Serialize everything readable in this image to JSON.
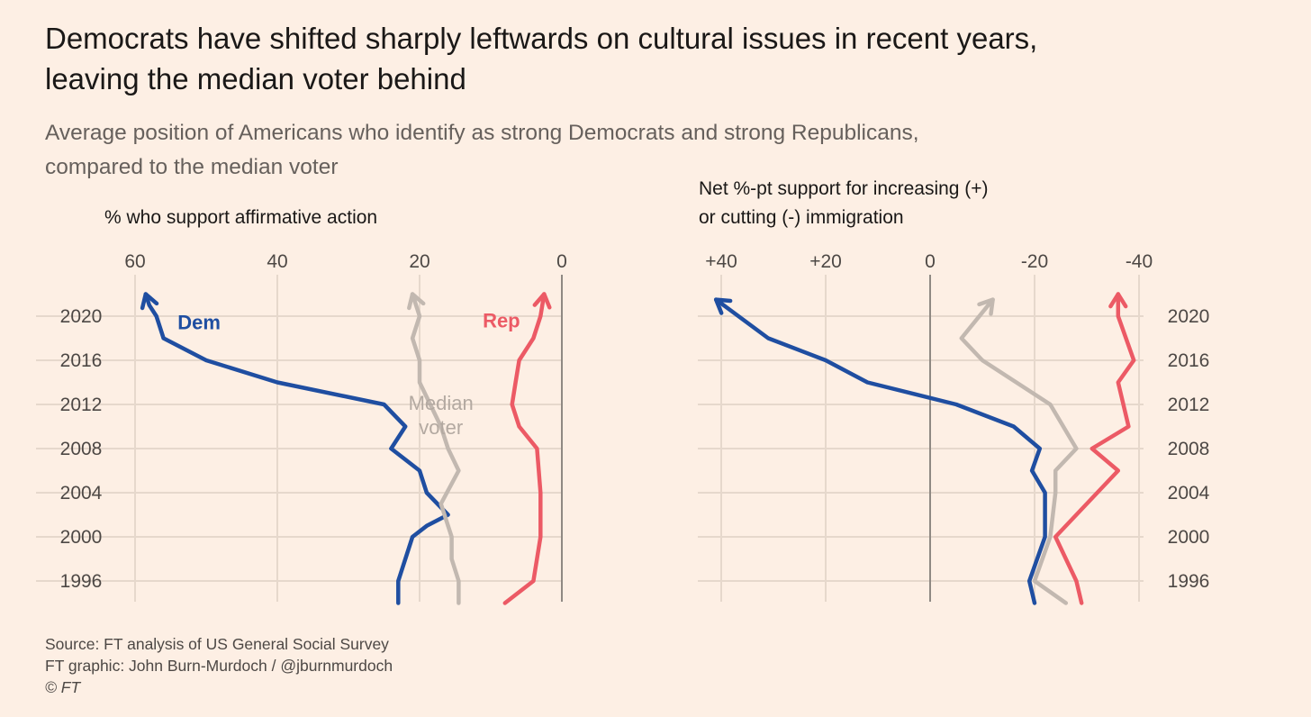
{
  "title_line1": "Democrats have shifted sharply leftwards on cultural issues in recent years,",
  "title_line2": "leaving the median voter behind",
  "subtitle_line1": "Average position of Americans who identify as strong Democrats and strong Republicans,",
  "subtitle_line2": "compared to the median voter",
  "source": {
    "line1": "Source: FT analysis of US General Social Survey",
    "line2": "FT graphic: John Burn-Murdoch / @jburnmurdoch",
    "line3": "© FT"
  },
  "colors": {
    "dem": "#1f4ea1",
    "rep": "#ec5a65",
    "median": "#c2b8b0",
    "grid": "#e6d8cc",
    "zero": "#8f8983"
  },
  "chart_data": [
    {
      "type": "line",
      "orientation": "vertical-time",
      "xlabel": "% who support affirmative action",
      "x_reversed": true,
      "xlim": [
        0,
        60
      ],
      "x_ticks": [
        {
          "value": 60,
          "label": "60"
        },
        {
          "value": 40,
          "label": "40"
        },
        {
          "value": 20,
          "label": "20"
        },
        {
          "value": 0,
          "label": "0"
        }
      ],
      "ylim": [
        1994,
        2022
      ],
      "y_ticks": [
        1996,
        2000,
        2004,
        2008,
        2012,
        2016,
        2020
      ],
      "tick_side": "left",
      "grid": true,
      "series": [
        {
          "name": "Dem",
          "color_key": "dem",
          "label_lines": [
            "Dem"
          ],
          "label_at": {
            "x": 51,
            "year": 2018.8
          },
          "points": [
            [
              23,
              1994
            ],
            [
              23,
              1996
            ],
            [
              22,
              1998
            ],
            [
              21,
              2000
            ],
            [
              19,
              2001
            ],
            [
              16,
              2002
            ],
            [
              19,
              2004
            ],
            [
              20,
              2006
            ],
            [
              24,
              2008
            ],
            [
              22,
              2010
            ],
            [
              25,
              2012
            ],
            [
              40,
              2014
            ],
            [
              50,
              2016
            ],
            [
              56,
              2018
            ],
            [
              57,
              2020
            ],
            [
              58,
              2021
            ],
            [
              58.5,
              2022
            ]
          ]
        },
        {
          "name": "Median voter",
          "color_key": "median",
          "label_lines": [
            "Median",
            "voter"
          ],
          "label_at": {
            "x": 17,
            "year": 2011.5
          },
          "points": [
            [
              14.5,
              1994
            ],
            [
              14.5,
              1996
            ],
            [
              15.5,
              1998
            ],
            [
              15.5,
              2000
            ],
            [
              17,
              2003
            ],
            [
              14.5,
              2006
            ],
            [
              16,
              2008
            ],
            [
              17,
              2010
            ],
            [
              20,
              2014
            ],
            [
              20,
              2016
            ],
            [
              21,
              2018
            ],
            [
              20,
              2020
            ],
            [
              21,
              2022
            ]
          ]
        },
        {
          "name": "Rep",
          "color_key": "rep",
          "label_lines": [
            "Rep"
          ],
          "label_at": {
            "x": 8.5,
            "year": 2019
          },
          "points": [
            [
              8,
              1994
            ],
            [
              4,
              1996
            ],
            [
              3,
              2000
            ],
            [
              3,
              2004
            ],
            [
              3.5,
              2008
            ],
            [
              6,
              2010
            ],
            [
              7,
              2012
            ],
            [
              6.5,
              2014
            ],
            [
              6,
              2016
            ],
            [
              4,
              2018
            ],
            [
              3,
              2020
            ],
            [
              2.5,
              2022
            ]
          ]
        }
      ]
    },
    {
      "type": "line",
      "orientation": "vertical-time",
      "xlabel_line1": "Net %-pt support for increasing (+)",
      "xlabel_line2": "or cutting (-) immigration",
      "x_reversed": true,
      "xlim": [
        -40,
        40
      ],
      "x_ticks": [
        {
          "value": 40,
          "label": "+40"
        },
        {
          "value": 20,
          "label": "+20"
        },
        {
          "value": 0,
          "label": "0"
        },
        {
          "value": -20,
          "label": "-20"
        },
        {
          "value": -40,
          "label": "-40"
        }
      ],
      "ylim": [
        1994,
        2022
      ],
      "y_ticks": [
        1996,
        2000,
        2004,
        2008,
        2012,
        2016,
        2020
      ],
      "tick_side": "right",
      "grid": true,
      "series": [
        {
          "name": "Dem",
          "color_key": "dem",
          "points": [
            [
              -20,
              1994
            ],
            [
              -19,
              1996
            ],
            [
              -22,
              2000
            ],
            [
              -22,
              2004
            ],
            [
              -19.5,
              2006
            ],
            [
              -21,
              2008
            ],
            [
              -16,
              2010
            ],
            [
              -5,
              2012
            ],
            [
              12,
              2014
            ],
            [
              20,
              2016
            ],
            [
              31,
              2018
            ],
            [
              41,
              2021.5
            ]
          ]
        },
        {
          "name": "Median voter",
          "color_key": "median",
          "points": [
            [
              -26,
              1994
            ],
            [
              -20,
              1996
            ],
            [
              -23,
              2000
            ],
            [
              -24,
              2004
            ],
            [
              -24,
              2006
            ],
            [
              -28,
              2008
            ],
            [
              -23,
              2012
            ],
            [
              -10,
              2016
            ],
            [
              -6,
              2018
            ],
            [
              -12,
              2021.5
            ]
          ]
        },
        {
          "name": "Rep",
          "color_key": "rep",
          "points": [
            [
              -29,
              1994
            ],
            [
              -28,
              1996
            ],
            [
              -24,
              2000
            ],
            [
              -32,
              2004
            ],
            [
              -36,
              2006
            ],
            [
              -31,
              2008
            ],
            [
              -38,
              2010
            ],
            [
              -36,
              2014
            ],
            [
              -39,
              2016
            ],
            [
              -36,
              2020
            ],
            [
              -36,
              2022
            ]
          ]
        }
      ]
    }
  ]
}
